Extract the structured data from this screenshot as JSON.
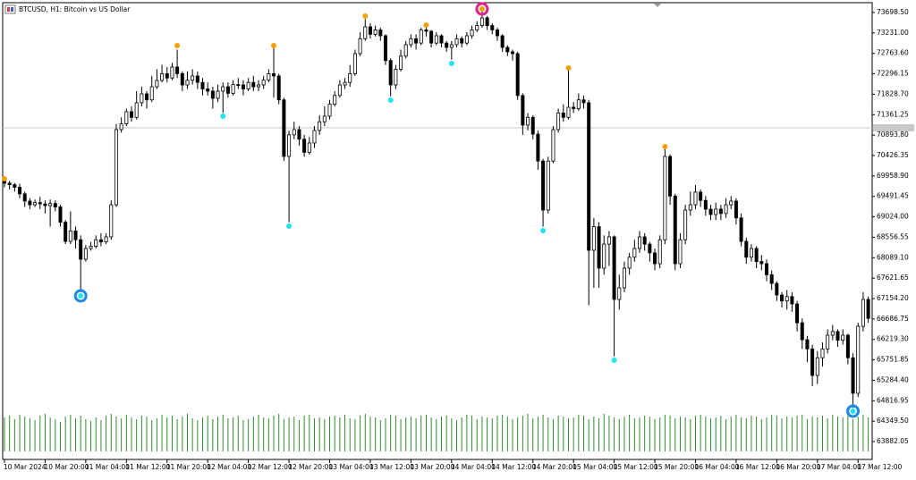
{
  "chart_data": {
    "type": "candlestick",
    "title": "BTCUSD, H1: Bitcoin vs US Dollar",
    "categories": [
      "10 Mar 2024",
      null,
      null,
      null,
      null,
      null,
      null,
      null,
      "10 Mar 20:00",
      null,
      null,
      null,
      null,
      null,
      null,
      null,
      "11 Mar 04:00",
      null,
      null,
      null,
      null,
      null,
      null,
      null,
      "11 Mar 12:00",
      null,
      null,
      null,
      null,
      null,
      null,
      null,
      "11 Mar 20:00",
      null,
      null,
      null,
      null,
      null,
      null,
      null,
      "12 Mar 04:00",
      null,
      null,
      null,
      null,
      null,
      null,
      null,
      "12 Mar 12:00",
      null,
      null,
      null,
      null,
      null,
      null,
      null,
      "12 Mar 20:00",
      null,
      null,
      null,
      null,
      null,
      null,
      null,
      "13 Mar 04:00",
      null,
      null,
      null,
      null,
      null,
      null,
      null,
      "13 Mar 12:00",
      null,
      null,
      null,
      null,
      null,
      null,
      null,
      "13 Mar 20:00",
      null,
      null,
      null,
      null,
      null,
      null,
      null,
      "14 Mar 04:00",
      null,
      null,
      null,
      null,
      null,
      null,
      null,
      "14 Mar 12:00",
      null,
      null,
      null,
      null,
      null,
      null,
      null,
      "14 Mar 20:00",
      null,
      null,
      null,
      null,
      null,
      null,
      null,
      "15 Mar 04:00",
      null,
      null,
      null,
      null,
      null,
      null,
      null,
      "15 Mar 12:00",
      null,
      null,
      null,
      null,
      null,
      null,
      null,
      "15 Mar 20:00",
      null,
      null,
      null,
      null,
      null,
      null,
      null,
      "16 Mar 04:00",
      null,
      null,
      null,
      null,
      null,
      null,
      null,
      "16 Mar 12:00",
      null,
      null,
      null,
      null,
      null,
      null,
      null,
      "16 Mar 20:00",
      null,
      null,
      null,
      null,
      null,
      null,
      null,
      "17 Mar 04:00",
      null,
      null,
      null,
      null,
      null,
      null,
      null,
      "17 Mar 12:00",
      null,
      null
    ],
    "open": [
      69850,
      69793,
      69760,
      69700,
      69550,
      69384,
      69300,
      69350,
      69320,
      69281,
      69330,
      69250,
      68900,
      68463,
      68700,
      68500,
      68054,
      68300,
      68350,
      68500,
      68450,
      68566,
      69300,
      71020,
      71150,
      71429,
      71300,
      71634,
      71838,
      71700,
      72000,
      72144,
      72300,
      72200,
      72452,
      72300,
      72042,
      72150,
      72247,
      72100,
      71950,
      71900,
      71736,
      71900,
      72000,
      71850,
      72050,
      72042,
      71950,
      72100,
      72000,
      72042,
      72150,
      72300,
      72247,
      71700,
      70406,
      70900,
      71020,
      70800,
      70500,
      70713,
      71000,
      71200,
      71327,
      71600,
      71800,
      72042,
      72100,
      72300,
      72758,
      73100,
      73371,
      73200,
      73300,
      73167,
      72600,
      72042,
      72400,
      72700,
      72963,
      73100,
      73000,
      73300,
      73269,
      73000,
      73167,
      73000,
      72900,
      72963,
      73100,
      73000,
      73167,
      73300,
      73400,
      73576,
      73400,
      73300,
      73167,
      72900,
      72800,
      72758,
      71800,
      71122,
      71300,
      70917,
      70300,
      69179,
      70300,
      71020,
      71400,
      71300,
      71531,
      71500,
      71700,
      71634,
      68259,
      68800,
      67850,
      68400,
      68566,
      67134,
      67400,
      67850,
      68100,
      68300,
      68566,
      68400,
      68200,
      67952,
      68500,
      70406,
      69500,
      67952,
      68500,
      69179,
      69300,
      69589,
      69400,
      69200,
      69077,
      69200,
      69100,
      69300,
      69384,
      69000,
      68463,
      68100,
      68300,
      68000,
      67952,
      67700,
      67500,
      67236,
      67100,
      67200,
      67032,
      66600,
      66213,
      66000,
      65395,
      65800,
      66000,
      66316,
      66400,
      66200,
      66316,
      65800,
      64987,
      66520,
      67134
    ],
    "high": [
      69870,
      69850,
      69800,
      69780,
      69600,
      69450,
      69420,
      69480,
      69400,
      69420,
      69400,
      69300,
      68950,
      69150,
      68800,
      68600,
      68380,
      68450,
      68600,
      68650,
      68650,
      69400,
      71150,
      71300,
      71500,
      71550,
      71900,
      72000,
      71900,
      72250,
      72400,
      72500,
      72450,
      72550,
      72850,
      72350,
      72350,
      72400,
      72350,
      72200,
      72100,
      72000,
      72050,
      72100,
      72100,
      72150,
      72200,
      72150,
      72200,
      72250,
      72150,
      72250,
      72400,
      72900,
      72300,
      71750,
      71000,
      71200,
      71100,
      70900,
      70850,
      71100,
      71350,
      71550,
      71700,
      71900,
      72150,
      72200,
      72500,
      72850,
      73250,
      73550,
      73450,
      73400,
      73350,
      73200,
      72650,
      72500,
      72850,
      73050,
      73200,
      73200,
      73350,
      73380,
      73300,
      73250,
      73200,
      73050,
      73050,
      73200,
      73150,
      73250,
      73400,
      73500,
      73750,
      73620,
      73450,
      73350,
      73200,
      72950,
      72850,
      72800,
      71850,
      71400,
      71350,
      71000,
      70350,
      70400,
      71100,
      71500,
      71600,
      72400,
      71650,
      71850,
      71800,
      71700,
      69000,
      68900,
      68600,
      68700,
      68600,
      67700,
      68000,
      68200,
      68500,
      68700,
      68650,
      68450,
      68300,
      68600,
      70580,
      70450,
      69550,
      68650,
      69300,
      69600,
      69750,
      69650,
      69500,
      69300,
      69350,
      69300,
      69450,
      69500,
      69450,
      69100,
      68550,
      68400,
      68350,
      68150,
      68050,
      67800,
      67550,
      67300,
      67350,
      67300,
      67100,
      66700,
      66300,
      66100,
      65950,
      66150,
      66450,
      66550,
      66450,
      66450,
      66350,
      65900,
      66600,
      67300,
      67200
    ],
    "low": [
      69700,
      69650,
      69600,
      69450,
      69250,
      69200,
      69250,
      69200,
      69100,
      68800,
      69150,
      68800,
      68400,
      68400,
      68300,
      67300,
      68000,
      68250,
      68300,
      68350,
      68400,
      68500,
      69250,
      70950,
      71100,
      71200,
      71250,
      71550,
      71500,
      71650,
      71950,
      72100,
      72100,
      72150,
      72200,
      71900,
      71950,
      72050,
      71950,
      71800,
      71800,
      71500,
      71650,
      71400,
      71750,
      71800,
      71950,
      71800,
      71900,
      71900,
      71900,
      71950,
      72100,
      71750,
      71600,
      70300,
      68900,
      70800,
      70650,
      70400,
      70450,
      70600,
      70900,
      71100,
      71250,
      71550,
      71750,
      71950,
      72000,
      72250,
      72700,
      73050,
      73100,
      73150,
      73050,
      72500,
      71780,
      71950,
      72350,
      72650,
      72900,
      72850,
      72950,
      73150,
      72900,
      72950,
      72900,
      72800,
      72620,
      72900,
      72900,
      72950,
      73100,
      73250,
      73350,
      73300,
      73200,
      73050,
      72800,
      72700,
      72600,
      71700,
      70900,
      71000,
      70800,
      70100,
      68800,
      69100,
      70250,
      70950,
      71200,
      71250,
      71400,
      71450,
      71500,
      67000,
      67400,
      67400,
      67700,
      67900,
      65830,
      66900,
      67300,
      67700,
      68000,
      68200,
      68250,
      68000,
      67800,
      67850,
      68400,
      69300,
      67800,
      67850,
      68400,
      69050,
      69200,
      69250,
      69050,
      68950,
      68950,
      68950,
      69000,
      69200,
      68850,
      68350,
      67950,
      68000,
      67850,
      67800,
      67550,
      67350,
      67100,
      66950,
      66900,
      66850,
      66400,
      66000,
      65700,
      65150,
      65200,
      65600,
      65900,
      66200,
      66050,
      66100,
      65650,
      64650,
      64900,
      66400,
      66600
    ],
    "close": [
      69793,
      69760,
      69700,
      69550,
      69384,
      69300,
      69350,
      69320,
      69281,
      69330,
      69250,
      68900,
      68463,
      68700,
      68500,
      68054,
      68300,
      68350,
      68500,
      68450,
      68566,
      69300,
      71020,
      71150,
      71429,
      71300,
      71634,
      71838,
      71700,
      72000,
      72144,
      72300,
      72200,
      72452,
      72300,
      72042,
      72150,
      72247,
      72100,
      71950,
      71900,
      71736,
      71900,
      72000,
      71850,
      72050,
      72042,
      71950,
      72100,
      72000,
      72042,
      72150,
      72300,
      72247,
      71700,
      70406,
      70900,
      71020,
      70800,
      70500,
      70713,
      71000,
      71200,
      71327,
      71600,
      71800,
      72042,
      72100,
      72300,
      72758,
      73100,
      73371,
      73200,
      73300,
      73167,
      72600,
      72042,
      72400,
      72700,
      72963,
      73100,
      73000,
      73300,
      73269,
      73000,
      73167,
      73000,
      72900,
      72963,
      73100,
      73000,
      73167,
      73300,
      73400,
      73576,
      73400,
      73300,
      73167,
      72900,
      72800,
      72758,
      71800,
      71122,
      71300,
      70917,
      70300,
      69179,
      70300,
      71020,
      71400,
      71300,
      71531,
      71500,
      71700,
      71634,
      68259,
      68800,
      67850,
      68400,
      68566,
      67134,
      67400,
      67850,
      68100,
      68300,
      68566,
      68400,
      68200,
      67952,
      68500,
      70406,
      69500,
      67952,
      68500,
      69179,
      69300,
      69589,
      69400,
      69200,
      69077,
      69200,
      69100,
      69300,
      69384,
      69000,
      68463,
      68100,
      68300,
      68000,
      67952,
      67700,
      67500,
      67236,
      67100,
      67200,
      67032,
      66600,
      66213,
      66000,
      65395,
      65800,
      66000,
      66316,
      66400,
      66200,
      66316,
      65800,
      64987,
      66520,
      67134,
      66700
    ],
    "volume": [
      38,
      40,
      36,
      41,
      39,
      37,
      35,
      40,
      42,
      38,
      36,
      33,
      39,
      41,
      37,
      40,
      36,
      34,
      38,
      35,
      40,
      42,
      39,
      37,
      41,
      38,
      36,
      40,
      39,
      35,
      37,
      41,
      38,
      40,
      36,
      39,
      42,
      37,
      35,
      38,
      40,
      36,
      39,
      41,
      37,
      38,
      40,
      35,
      36,
      39,
      41,
      38,
      37,
      40,
      42,
      36,
      38,
      39,
      35,
      40,
      41,
      37,
      38,
      36,
      39,
      40,
      38,
      41,
      37,
      36,
      40,
      42,
      39,
      38,
      35,
      37,
      41,
      40,
      36,
      38,
      39,
      37,
      40,
      41,
      38,
      36,
      39,
      40,
      37,
      35,
      38,
      41,
      40,
      36,
      39,
      38,
      37,
      40,
      41,
      39,
      36,
      38,
      40,
      42,
      37,
      39,
      41,
      38,
      36,
      40,
      39,
      37,
      38,
      41,
      40,
      36,
      39,
      37,
      42,
      40,
      38,
      36,
      39,
      41,
      37,
      38,
      40,
      39,
      36,
      38,
      41,
      40,
      37,
      39,
      38,
      36,
      40,
      41,
      39,
      37,
      38,
      40,
      36,
      39,
      41,
      38,
      37,
      40,
      39,
      36,
      38,
      41,
      40,
      37,
      39,
      38,
      40,
      41,
      36,
      39,
      38,
      40,
      37,
      41,
      39,
      38,
      40,
      36,
      39,
      41,
      38
    ],
    "volume_lim": [
      0,
      100
    ],
    "volume_color": "#2e8b2e",
    "up_color": "#ffffff",
    "down_color": "#000000",
    "outline_color": "#000000",
    "signals": {
      "up": {
        "x": [
          0,
          34,
          53,
          71,
          83,
          94,
          111,
          130
        ],
        "values": [
          69895,
          72942,
          72942,
          73617,
          73412,
          73780,
          72431,
          70631
        ],
        "color": "#f5a000",
        "ring_color": [
          null,
          null,
          null,
          null,
          null,
          "#e3218c",
          null,
          null
        ]
      },
      "down": {
        "x": [
          15,
          43,
          56,
          76,
          88,
          106,
          120,
          167
        ],
        "values": [
          67216,
          71327,
          68811,
          71695,
          72533,
          68709,
          65743,
          64578
        ],
        "color": "#22e3f0",
        "ring_color": [
          "#1e88e5",
          null,
          null,
          null,
          null,
          null,
          null,
          "#1e88e5"
        ]
      }
    },
    "bid": 71060,
    "bid_color": "#c8c8c8",
    "ylim": [
      63473.5,
      73923.5
    ],
    "yticks": [
      {
        "value": 73698.5,
        "label": "73698.50"
      },
      {
        "value": 73231,
        "label": "73231.00"
      },
      {
        "value": 72763.6,
        "label": "72763.60"
      },
      {
        "value": 72296.15,
        "label": "72296.15"
      },
      {
        "value": 71828.7,
        "label": "71828.70"
      },
      {
        "value": 71361.25,
        "label": "71361.25"
      },
      {
        "value": 70893.8,
        "label": "70893.80"
      },
      {
        "value": 70426.35,
        "label": "70426.35"
      },
      {
        "value": 69958.9,
        "label": "69958.90"
      },
      {
        "value": 69491.45,
        "label": "69491.45"
      },
      {
        "value": 69024,
        "label": "69024.00"
      },
      {
        "value": 68556.55,
        "label": "68556.55"
      },
      {
        "value": 68089.1,
        "label": "68089.10"
      },
      {
        "value": 67621.65,
        "label": "67621.65"
      },
      {
        "value": 67154.2,
        "label": "67154.20"
      },
      {
        "value": 66686.75,
        "label": "66686.75"
      },
      {
        "value": 66219.3,
        "label": "66219.30"
      },
      {
        "value": 65751.85,
        "label": "65751.85"
      },
      {
        "value": 65284.4,
        "label": "65284.40"
      },
      {
        "value": 64816.95,
        "label": "64816.95"
      },
      {
        "value": 64349.5,
        "label": "64349.50"
      },
      {
        "value": 63882.05,
        "label": "63882.05"
      }
    ],
    "grid": false
  }
}
